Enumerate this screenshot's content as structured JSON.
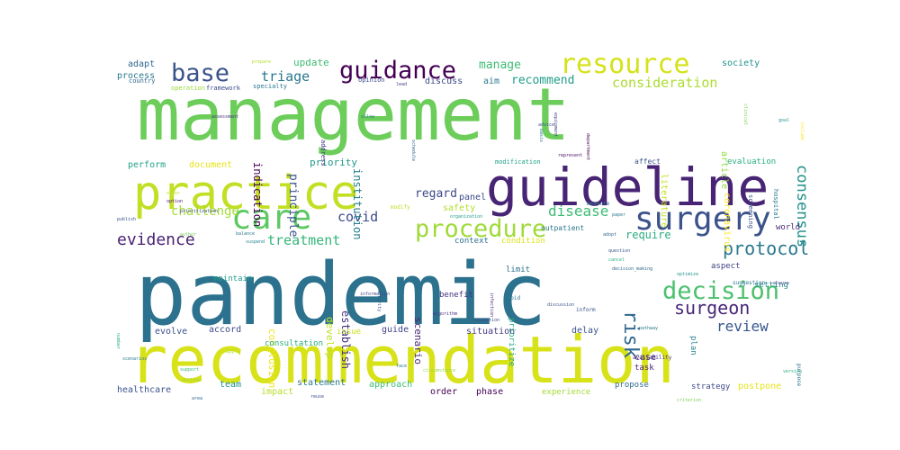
{
  "words": [
    {
      "text": "management",
      "color": "#6ccd5a"
    },
    {
      "text": "pandemic",
      "color": "#2c728e"
    },
    {
      "text": "recommendation",
      "color": "#d8e219"
    },
    {
      "text": "guideline",
      "color": "#482475"
    },
    {
      "text": "practice",
      "color": "#c2df23"
    },
    {
      "text": "care",
      "color": "#5ec962"
    },
    {
      "text": "surgery",
      "color": "#3b528b"
    },
    {
      "text": "resource",
      "color": "#d5e21a"
    },
    {
      "text": "guidance",
      "color": "#440154"
    },
    {
      "text": "base",
      "color": "#3b528b"
    },
    {
      "text": "procedure",
      "color": "#a0da39"
    },
    {
      "text": "decision",
      "color": "#4ac16d"
    },
    {
      "text": "protocol",
      "color": "#2a788e"
    },
    {
      "text": "surgeon",
      "color": "#482878"
    },
    {
      "text": "evidence",
      "color": "#482173"
    },
    {
      "text": "treatment",
      "color": "#35b779"
    },
    {
      "text": "covid",
      "color": "#3e4a89"
    },
    {
      "text": "disease",
      "color": "#3dbc74"
    },
    {
      "text": "risk",
      "color": "#31688e"
    },
    {
      "text": "challenge",
      "color": "#a5db36"
    },
    {
      "text": "review",
      "color": "#39568c"
    },
    {
      "text": "consensus",
      "color": "#21918c"
    },
    {
      "text": "consideration",
      "color": "#addc30"
    },
    {
      "text": "manage",
      "color": "#3fbc73"
    },
    {
      "text": "recommend",
      "color": "#1f9e89"
    },
    {
      "text": "triage",
      "color": "#2a788e"
    },
    {
      "text": "regard",
      "color": "#3e4989"
    },
    {
      "text": "require",
      "color": "#27ad81"
    },
    {
      "text": "principle",
      "color": "#3b528b"
    },
    {
      "text": "indication",
      "color": "#440154"
    },
    {
      "text": "institution",
      "color": "#277f8e"
    },
    {
      "text": "priority",
      "color": "#1f9a8a"
    },
    {
      "text": "establish",
      "color": "#46327e"
    },
    {
      "text": "develop",
      "color": "#bddf26"
    },
    {
      "text": "conclusion",
      "color": "#f2e51d"
    },
    {
      "text": "scenario",
      "color": "#482878"
    },
    {
      "text": "literature",
      "color": "#c5e021"
    },
    {
      "text": "coronavirus",
      "color": "#fde725"
    },
    {
      "text": "article",
      "color": "#90d743"
    },
    {
      "text": "update",
      "color": "#3dbc74"
    },
    {
      "text": "process",
      "color": "#2a788e"
    },
    {
      "text": "adapt",
      "color": "#31688e"
    },
    {
      "text": "society",
      "color": "#20938c"
    },
    {
      "text": "aim",
      "color": "#2a788e"
    },
    {
      "text": "discuss",
      "color": "#3e4a89"
    },
    {
      "text": "perform",
      "color": "#20a386"
    },
    {
      "text": "document",
      "color": "#e7e419"
    },
    {
      "text": "panel",
      "color": "#3e4a89"
    },
    {
      "text": "safety",
      "color": "#b5de2b"
    },
    {
      "text": "context",
      "color": "#2d708e"
    },
    {
      "text": "condition",
      "color": "#dde318"
    },
    {
      "text": "evaluation",
      "color": "#26ad81"
    },
    {
      "text": "setting",
      "color": "#25858e"
    },
    {
      "text": "aspect",
      "color": "#404387"
    },
    {
      "text": "world",
      "color": "#482878"
    },
    {
      "text": "maintain",
      "color": "#1f9e89"
    },
    {
      "text": "evolve",
      "color": "#3b528b"
    },
    {
      "text": "accord",
      "color": "#3e4a89"
    },
    {
      "text": "consultation",
      "color": "#29af7f"
    },
    {
      "text": "issue",
      "color": "#cae11f"
    },
    {
      "text": "guide",
      "color": "#414487"
    },
    {
      "text": "situation",
      "color": "#443b84"
    },
    {
      "text": "delay",
      "color": "#3b528b"
    },
    {
      "text": "plan",
      "color": "#25838e"
    },
    {
      "text": "prioritize",
      "color": "#22a884"
    },
    {
      "text": "benefit",
      "color": "#46327e"
    },
    {
      "text": "limit",
      "color": "#2d708e"
    },
    {
      "text": "healthcare",
      "color": "#3b528b"
    },
    {
      "text": "team",
      "color": "#21918c"
    },
    {
      "text": "impact",
      "color": "#b8de29"
    },
    {
      "text": "statement",
      "color": "#2a788e"
    },
    {
      "text": "approach",
      "color": "#3dbc74"
    },
    {
      "text": "order",
      "color": "#440154"
    },
    {
      "text": "phase",
      "color": "#440154"
    },
    {
      "text": "experience",
      "color": "#a5db36"
    },
    {
      "text": "propose",
      "color": "#31688e"
    },
    {
      "text": "strategy",
      "color": "#3e4a89"
    },
    {
      "text": "postpone",
      "color": "#e5e419"
    },
    {
      "text": "case",
      "color": "#472a7a"
    },
    {
      "text": "task",
      "color": "#481a6c"
    },
    {
      "text": "country",
      "color": "#31688e"
    },
    {
      "text": "operation",
      "color": "#9bd93c"
    },
    {
      "text": "framework",
      "color": "#3e4a89"
    },
    {
      "text": "specialty",
      "color": "#2a788e"
    },
    {
      "text": "prepare",
      "color": "#b5de2b"
    },
    {
      "text": "opinion",
      "color": "#3e4a89"
    },
    {
      "text": "lead",
      "color": "#404387"
    },
    {
      "text": "assessment",
      "color": "#46327e"
    },
    {
      "text": "allow",
      "color": "#2a788e"
    },
    {
      "text": "address",
      "color": "#443b84"
    },
    {
      "text": "advice",
      "color": "#3b528b"
    },
    {
      "text": "schedule",
      "color": "#31688e"
    },
    {
      "text": "modification",
      "color": "#1fa188"
    },
    {
      "text": "represent",
      "color": "#471164"
    },
    {
      "text": "affect",
      "color": "#3b528b"
    },
    {
      "text": "screening",
      "color": "#3b528b"
    },
    {
      "text": "hospital",
      "color": "#2a788e"
    },
    {
      "text": "clinical",
      "color": "#7ad151"
    },
    {
      "text": "basis",
      "color": "#2c728e"
    },
    {
      "text": "equipment",
      "color": "#443b84"
    },
    {
      "text": "department",
      "color": "#440154"
    },
    {
      "text": "measure",
      "color": "#2a788e"
    },
    {
      "text": "goal",
      "color": "#20938c"
    },
    {
      "text": "include",
      "color": "#fde725"
    },
    {
      "text": "offer",
      "color": "#b5de2b"
    },
    {
      "text": "option",
      "color": "#471365"
    },
    {
      "text": "prioritization",
      "color": "#3e4a89"
    },
    {
      "text": "publish",
      "color": "#3b528b"
    },
    {
      "text": "author",
      "color": "#75d054"
    },
    {
      "text": "balance",
      "color": "#2a788e"
    },
    {
      "text": "suspend",
      "color": "#25858e"
    },
    {
      "text": "modify",
      "color": "#bddf26"
    },
    {
      "text": "organization",
      "color": "#1f9e89"
    },
    {
      "text": "paper",
      "color": "#2a788e"
    },
    {
      "text": "outpatient",
      "color": "#2a788e"
    },
    {
      "text": "adopt",
      "color": "#31688e"
    },
    {
      "text": "question",
      "color": "#3b528b"
    },
    {
      "text": "cancel",
      "color": "#2ab07f"
    },
    {
      "text": "decision_making",
      "color": "#31688e"
    },
    {
      "text": "suggestion",
      "color": "#2a788e"
    },
    {
      "text": "optimize",
      "color": "#20938c"
    },
    {
      "text": "ensure",
      "color": "#3e4a89"
    },
    {
      "text": "information",
      "color": "#3e4a89"
    },
    {
      "text": "activity",
      "color": "#38588c"
    },
    {
      "text": "algorithm",
      "color": "#46327e"
    },
    {
      "text": "infection",
      "color": "#482878"
    },
    {
      "text": "avoid",
      "color": "#2a788e"
    },
    {
      "text": "discussion",
      "color": "#3b528b"
    },
    {
      "text": "number",
      "color": "#28ae80"
    },
    {
      "text": "inform",
      "color": "#3b528b"
    },
    {
      "text": "scenarios",
      "color": "#2a788e"
    },
    {
      "text": "support",
      "color": "#35b779"
    },
    {
      "text": "outline",
      "color": "#95d840"
    },
    {
      "text": "apply",
      "color": "#b5de2b"
    },
    {
      "text": "resumption",
      "color": "#3e4a89"
    },
    {
      "text": "pathway",
      "color": "#2a788e"
    },
    {
      "text": "availability",
      "color": "#46327e"
    },
    {
      "text": "version",
      "color": "#29af7f"
    },
    {
      "text": "purpose",
      "color": "#2c728e"
    },
    {
      "text": "circumstance",
      "color": "#95d840"
    },
    {
      "text": "criterion",
      "color": "#7ad151"
    },
    {
      "text": "reuse",
      "color": "#3e4a89"
    },
    {
      "text": "area",
      "color": "#31688e"
    },
    {
      "text": "face",
      "color": "#2a788e"
    }
  ]
}
